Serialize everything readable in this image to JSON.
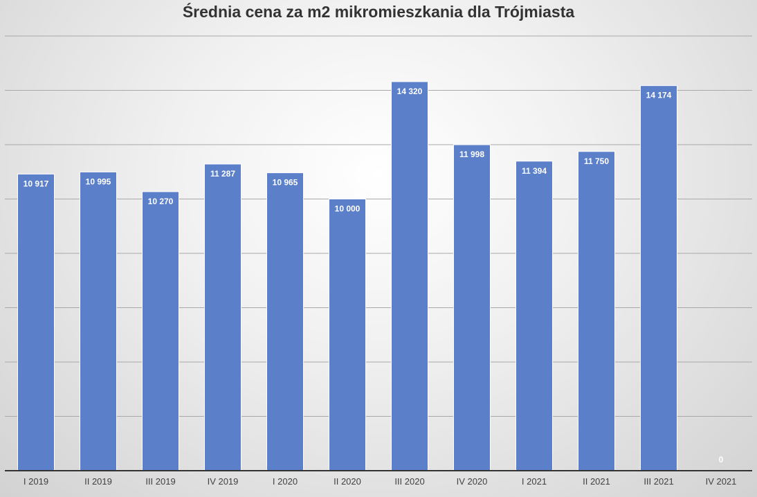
{
  "chart_data": {
    "type": "bar",
    "title": "Średnia cena za m2 mikromieszkania dla Trójmiasta",
    "categories": [
      "I 2019",
      "II 2019",
      "III 2019",
      "IV 2019",
      "I 2020",
      "II 2020",
      "III 2020",
      "IV 2020",
      "I 2021",
      "II 2021",
      "III 2021",
      "IV 2021"
    ],
    "values": [
      10917,
      10995,
      10270,
      11287,
      10965,
      10000,
      14320,
      11998,
      11394,
      11750,
      14174,
      0
    ],
    "data_labels": [
      "10 917",
      "10 995",
      "10 270",
      "11 287",
      "10 965",
      "10 000",
      "14 320",
      "11 998",
      "11 394",
      "11 750",
      "14 174",
      "0"
    ],
    "ylim": [
      0,
      16000
    ],
    "y_gridline_step": 2000,
    "grid": true,
    "y_tick_labels_shown": false,
    "bar_color": "#5b7fc9",
    "label_color": "#ffffff"
  }
}
